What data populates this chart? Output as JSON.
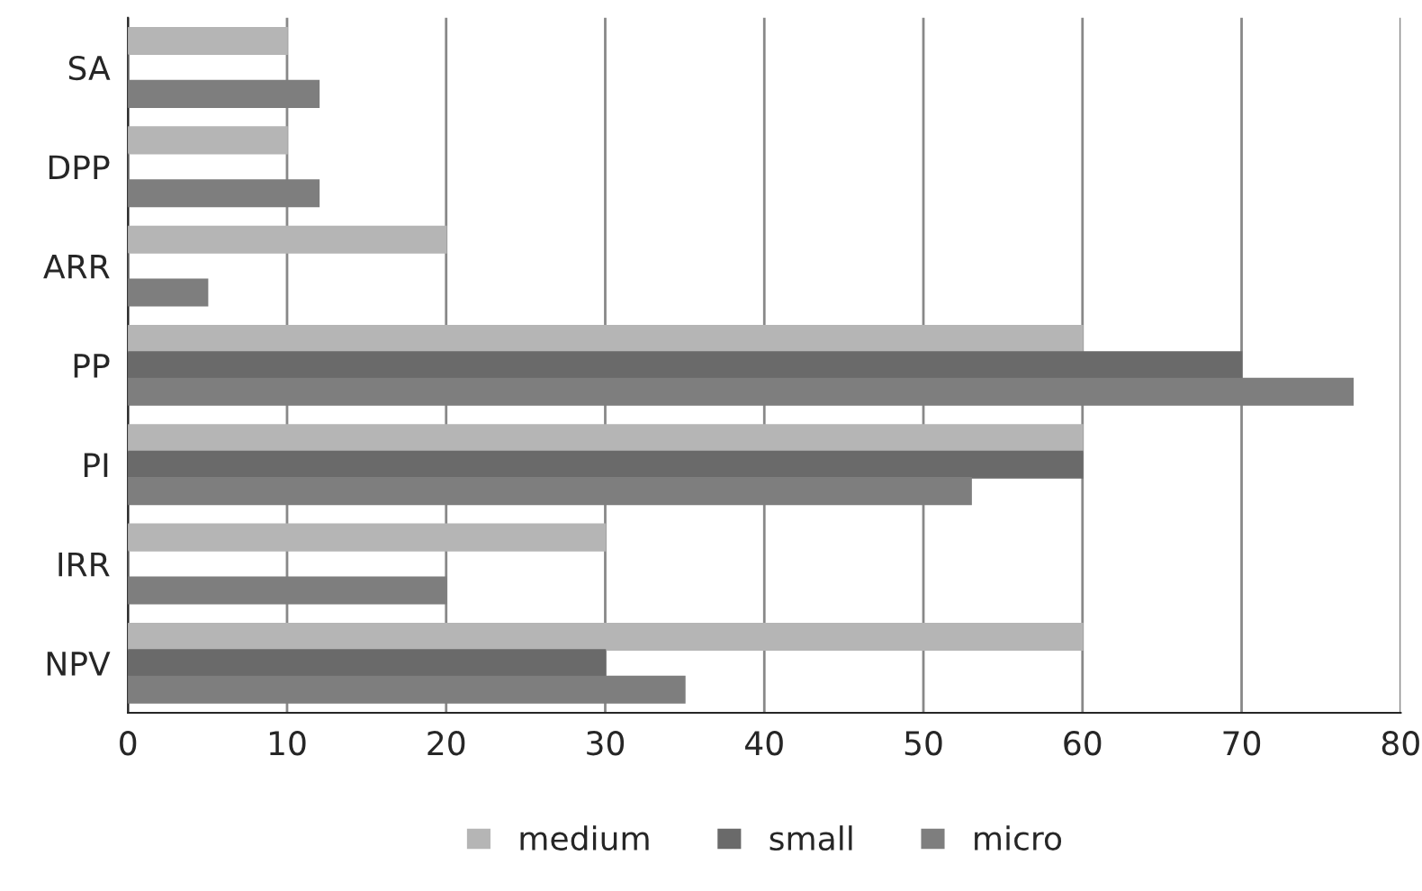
{
  "chart_data": {
    "type": "bar",
    "orientation": "horizontal",
    "categories": [
      "SA",
      "DPP",
      "ARR",
      "PP",
      "PI",
      "IRR",
      "NPV"
    ],
    "series": [
      {
        "name": "medium",
        "color": "#b5b5b5",
        "values": [
          10,
          10,
          20,
          60,
          60,
          30,
          60
        ]
      },
      {
        "name": "small",
        "color": "#6a6a6a",
        "values": [
          0,
          0,
          0,
          70,
          60,
          0,
          30
        ]
      },
      {
        "name": "micro",
        "color": "#7e7e7e",
        "values": [
          12,
          12,
          5,
          77,
          53,
          20,
          35
        ]
      }
    ],
    "xlim": [
      0,
      80
    ],
    "xticks": [
      0,
      10,
      20,
      30,
      40,
      50,
      60,
      70,
      80
    ],
    "grid": "x",
    "legend": "bottom"
  }
}
